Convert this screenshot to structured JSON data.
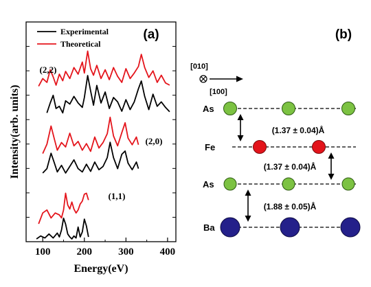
{
  "colors": {
    "experimental": "#000000",
    "theoretical": "#e4141b",
    "as_atom": "#7cc242",
    "fe_atom": "#e3141b",
    "ba_atom": "#24208a"
  },
  "chart_data": [
    {
      "type": "line",
      "panel_label": "(a)",
      "xlabel": "Energy(eV)",
      "ylabel": "Intensity(arb. units)",
      "xlim": [
        60,
        420
      ],
      "x_ticks": [
        100,
        200,
        300,
        400
      ],
      "y_ticks_labeled": false,
      "legend": {
        "placement": "top-left",
        "entries": [
          {
            "name": "Experimental",
            "color_key": "experimental"
          },
          {
            "name": "Theoretical",
            "color_key": "theoretical"
          }
        ]
      },
      "groups": [
        {
          "label": "(2,2)",
          "series": [
            {
              "name": "Theoretical",
              "x": [
                90,
                100,
                110,
                118,
                125,
                132,
                140,
                148,
                155,
                165,
                175,
                185,
                195,
                200,
                208,
                215,
                222,
                230,
                240,
                250,
                260,
                270,
                280,
                290,
                300,
                310,
                320,
                330,
                337,
                345,
                355,
                365,
                375,
                385,
                395,
                405
              ],
              "y": [
                0.28,
                0.42,
                0.35,
                0.58,
                0.45,
                0.3,
                0.5,
                0.38,
                0.55,
                0.42,
                0.62,
                0.5,
                0.72,
                0.52,
                0.92,
                0.6,
                0.48,
                0.66,
                0.42,
                0.58,
                0.4,
                0.62,
                0.46,
                0.35,
                0.6,
                0.42,
                0.52,
                0.64,
                0.86,
                0.62,
                0.44,
                0.56,
                0.35,
                0.48,
                0.34,
                0.3
              ]
            },
            {
              "name": "Experimental",
              "x": [
                110,
                118,
                125,
                132,
                140,
                148,
                155,
                165,
                175,
                185,
                195,
                200,
                208,
                215,
                222,
                230,
                240,
                250,
                260,
                270,
                280,
                290,
                300,
                310,
                320,
                330,
                337,
                345,
                355,
                365,
                375,
                385,
                395,
                405
              ],
              "y": [
                0.02,
                0.2,
                0.34,
                0.1,
                0.14,
                0.02,
                0.24,
                0.18,
                0.32,
                0.2,
                0.12,
                0.3,
                0.7,
                0.42,
                0.16,
                0.52,
                0.2,
                0.4,
                0.1,
                0.3,
                0.22,
                0.05,
                0.26,
                0.08,
                0.22,
                0.46,
                0.6,
                0.32,
                0.08,
                0.36,
                0.14,
                0.22,
                0.12,
                0.04
              ]
            }
          ]
        },
        {
          "label": "(2,0)",
          "series": [
            {
              "name": "Theoretical",
              "x": [
                100,
                110,
                120,
                128,
                135,
                145,
                155,
                165,
                175,
                185,
                195,
                205,
                215,
                225,
                235,
                245,
                255,
                262,
                270,
                280,
                290,
                298,
                305,
                315,
                325,
                330
              ],
              "y": [
                0.08,
                0.25,
                0.58,
                0.34,
                0.14,
                0.28,
                0.2,
                0.45,
                0.22,
                0.3,
                0.14,
                0.26,
                0.12,
                0.38,
                0.18,
                0.28,
                0.44,
                0.74,
                0.4,
                0.22,
                0.46,
                0.64,
                0.36,
                0.24,
                0.38,
                0.24
              ]
            },
            {
              "name": "Experimental",
              "x": [
                100,
                110,
                120,
                128,
                135,
                145,
                155,
                165,
                175,
                185,
                195,
                205,
                215,
                225,
                235,
                245,
                255,
                262,
                270,
                280,
                290,
                298,
                305,
                315,
                325,
                330
              ],
              "y": [
                0.0,
                0.08,
                0.36,
                0.18,
                0.02,
                0.14,
                0.0,
                0.12,
                0.24,
                0.08,
                0.02,
                0.16,
                0.03,
                0.2,
                0.06,
                0.12,
                0.28,
                0.56,
                0.28,
                0.08,
                0.34,
                0.4,
                0.18,
                0.06,
                0.2,
                0.08
              ]
            }
          ]
        },
        {
          "label": "(1,1)",
          "series": [
            {
              "name": "Theoretical",
              "x": [
                90,
                100,
                110,
                120,
                130,
                140,
                145,
                150,
                155,
                160,
                165,
                170,
                175,
                180,
                185,
                190,
                195,
                200,
                205,
                210
              ],
              "y": [
                0.0,
                0.22,
                0.28,
                0.12,
                0.22,
                0.18,
                0.12,
                0.28,
                0.62,
                0.38,
                0.3,
                0.44,
                0.3,
                0.22,
                0.28,
                0.4,
                0.46,
                0.6,
                0.62,
                0.48
              ]
            },
            {
              "name": "Experimental",
              "x": [
                85,
                95,
                105,
                115,
                125,
                135,
                140,
                145,
                150,
                155,
                160,
                165,
                170,
                175,
                180,
                185,
                190,
                195,
                200,
                205,
                210
              ],
              "y": [
                0.0,
                0.06,
                0.02,
                0.1,
                0.02,
                0.12,
                0.04,
                0.18,
                0.42,
                0.3,
                0.1,
                0.04,
                0.0,
                0.06,
                0.02,
                0.24,
                0.04,
                0.14,
                0.4,
                0.26,
                0.04
              ]
            }
          ]
        }
      ]
    },
    {
      "type": "diagram",
      "panel_label": "(b)",
      "direction_labels": {
        "into_page": "[010]",
        "arrow": "[100]"
      },
      "layers": [
        {
          "element": "As",
          "color_key": "as_atom",
          "atoms": 3
        },
        {
          "element": "Fe",
          "color_key": "fe_atom",
          "atoms": 2
        },
        {
          "element": "As",
          "color_key": "as_atom",
          "atoms": 3
        },
        {
          "element": "Ba",
          "color_key": "ba_atom",
          "atoms": 3
        }
      ],
      "spacings": [
        {
          "between": "As-Fe",
          "label": "(1.37 ± 0.04)Å"
        },
        {
          "between": "Fe-As",
          "label": "(1.37 ± 0.04)Å"
        },
        {
          "between": "As-Ba",
          "label": "(1.88 ± 0.05)Å"
        }
      ]
    }
  ]
}
